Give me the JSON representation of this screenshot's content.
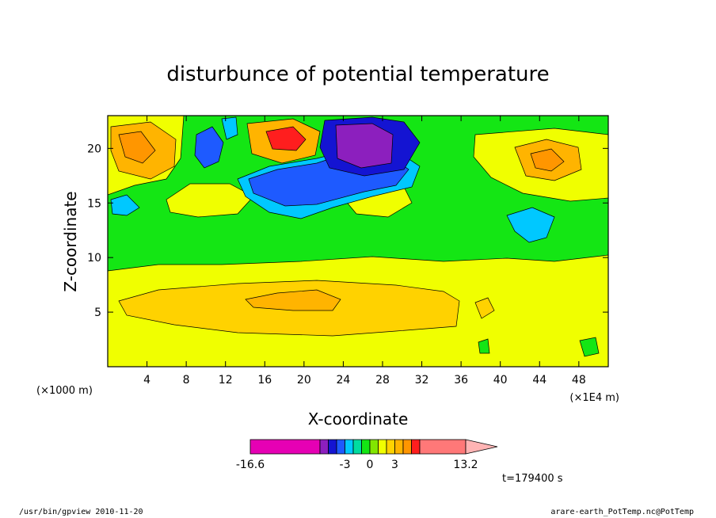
{
  "chart_data": {
    "type": "heatmap",
    "title": "disturbunce of potential temperature",
    "xlabel": "X-coordinate",
    "ylabel": "Z-coordinate",
    "x_unit_left": "(×1000 m)",
    "x_unit_right": "(×1E4 m)",
    "xlim": [
      0,
      51
    ],
    "ylim": [
      0,
      23
    ],
    "x_ticks": [
      4,
      8,
      12,
      16,
      20,
      24,
      28,
      32,
      36,
      40,
      44,
      48
    ],
    "y_ticks": [
      5,
      10,
      15,
      20
    ],
    "colorbar": {
      "levels": [
        -16.6,
        -9,
        -5,
        -4,
        -3,
        -2,
        -1,
        0,
        1,
        2,
        3,
        4,
        5,
        7,
        13.2
      ],
      "colors": [
        "#e600b4",
        "#8c1fbe",
        "#1414d2",
        "#1e5aff",
        "#00c8ff",
        "#00dca0",
        "#14e614",
        "#82e600",
        "#f0ff00",
        "#ffd200",
        "#ffb400",
        "#ff9600",
        "#ff1e1e",
        "#ff7878",
        "#ffb4b4"
      ],
      "tick_labels": [
        "-16.6",
        "-3",
        "0",
        "3",
        "13.2"
      ]
    },
    "time_label": "t=179400 s"
  },
  "footer": {
    "left": "/usr/bin/gpview  2010-11-20",
    "right": "arare-earth_PotTemp.nc@PotTemp"
  }
}
